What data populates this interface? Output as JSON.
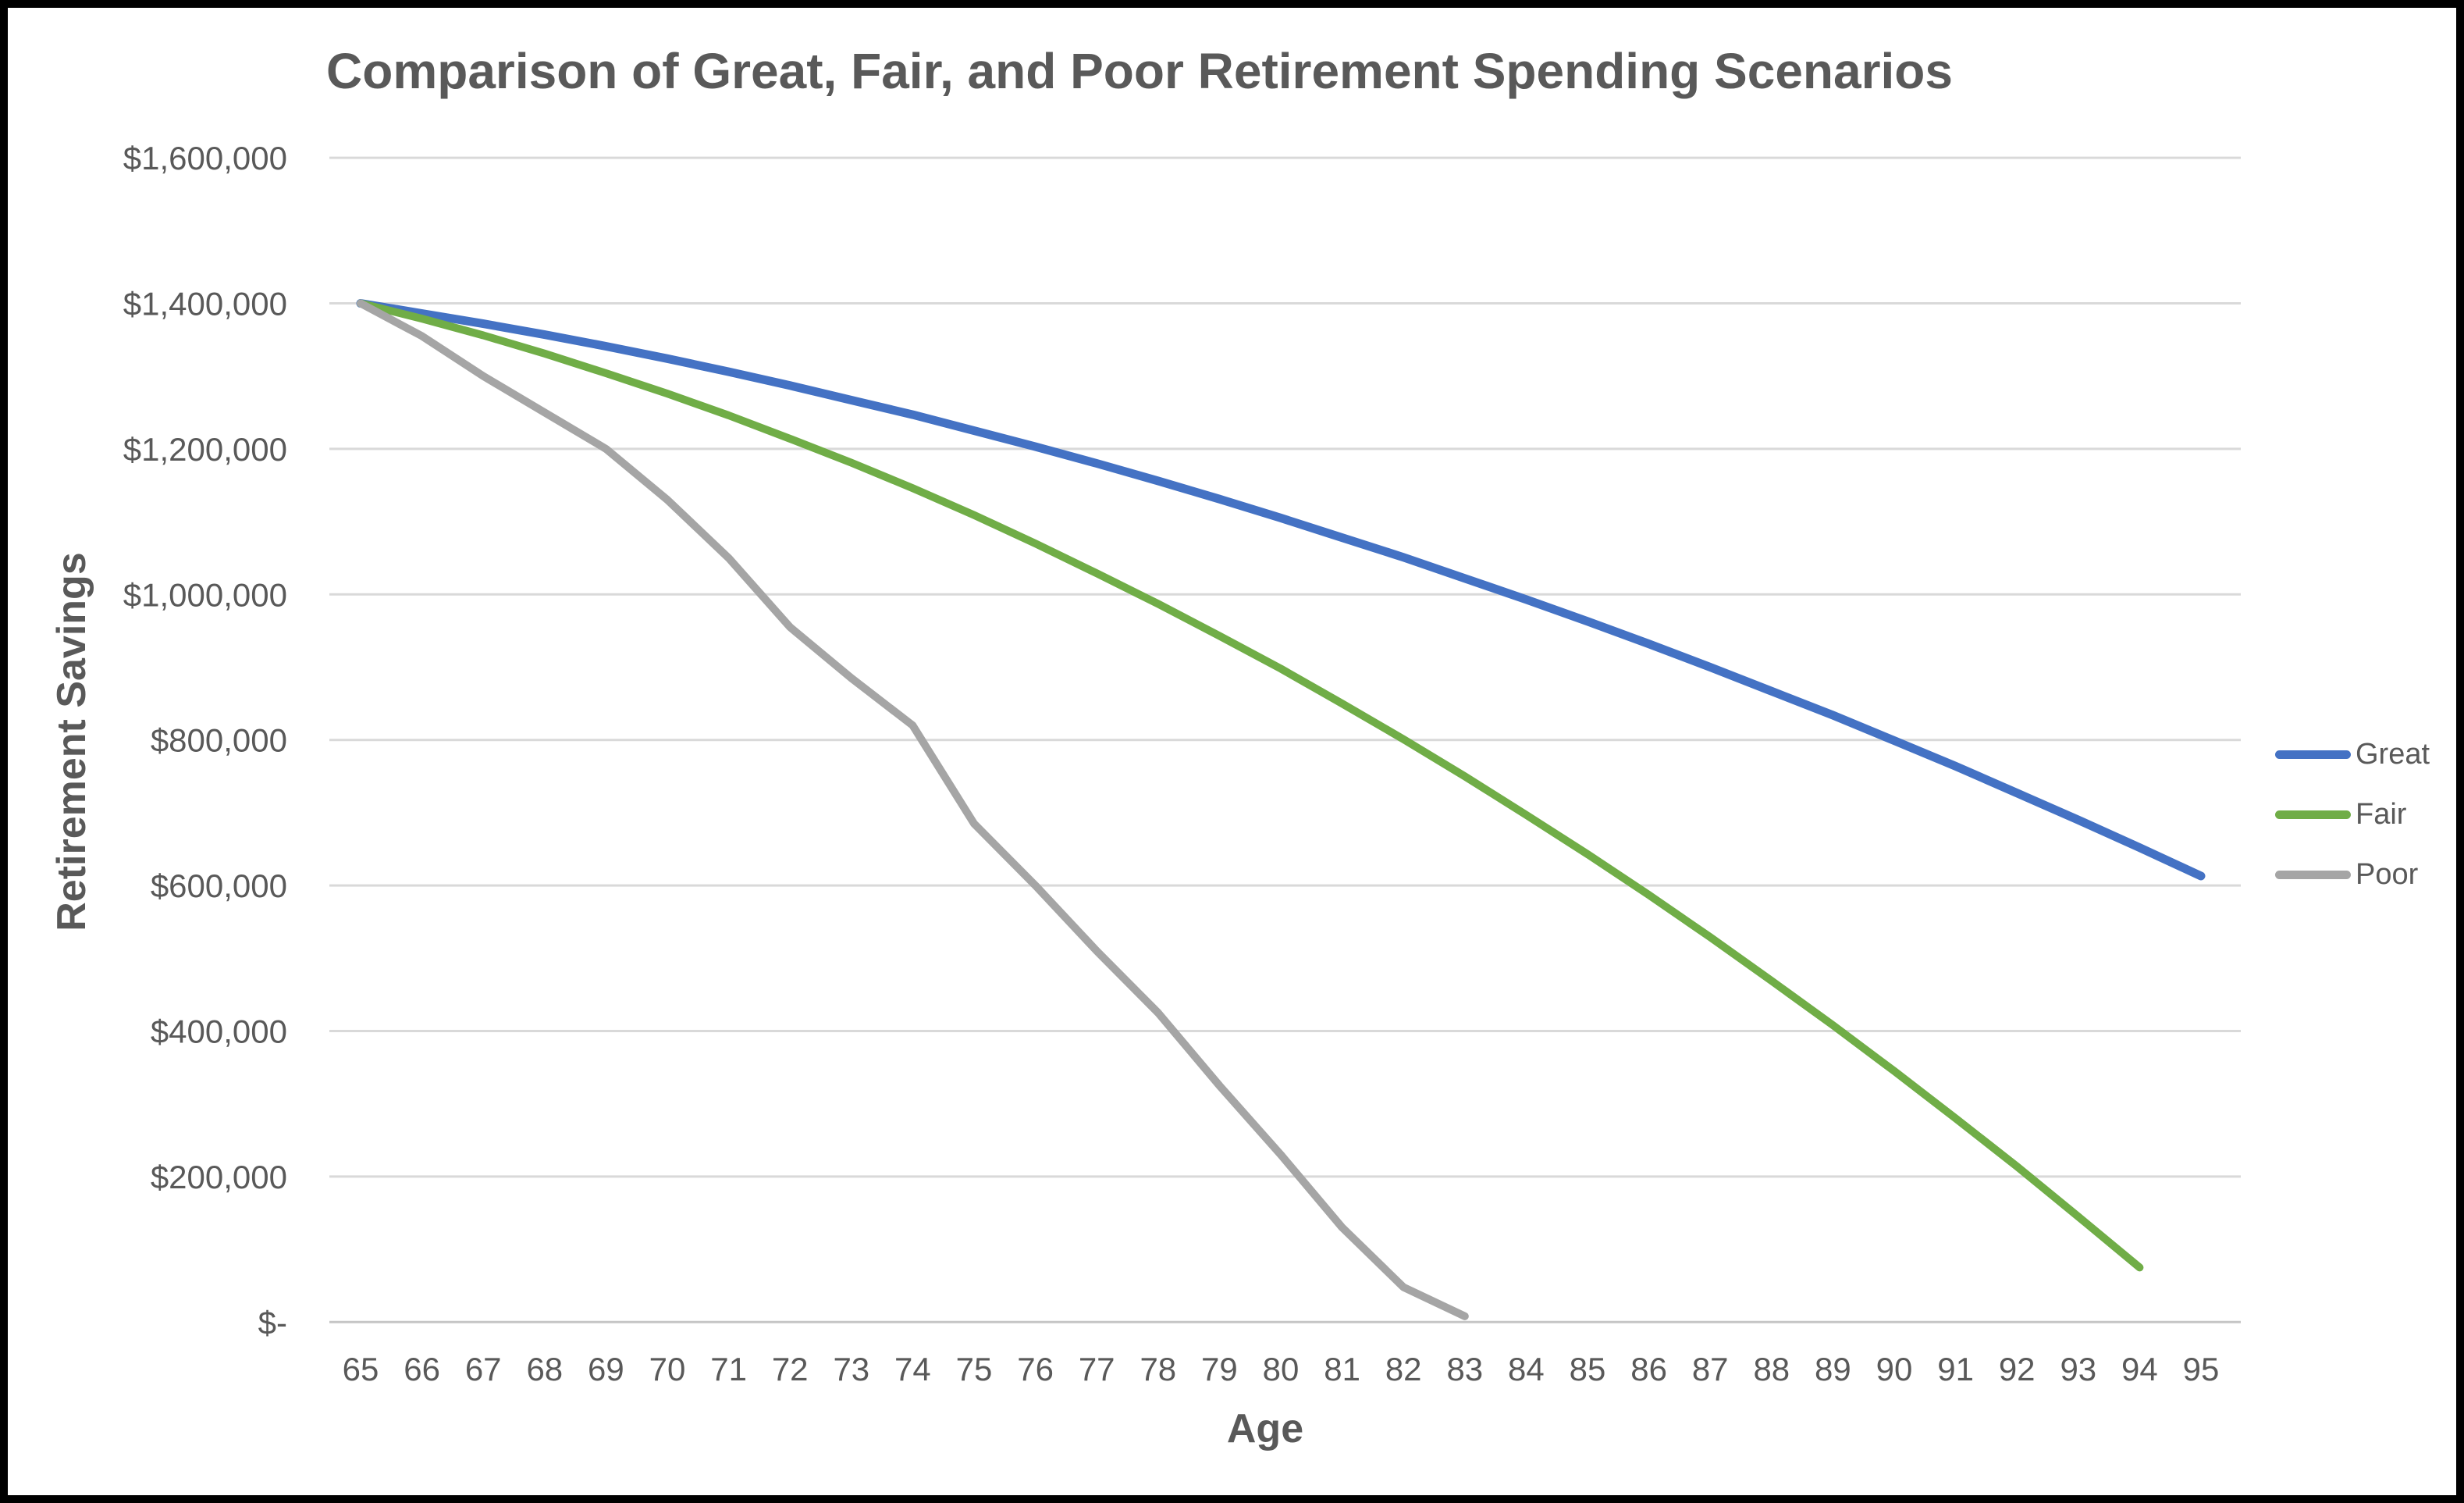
{
  "chart_data": {
    "type": "line",
    "title": "Comparison of Great, Fair, and Poor Retirement Spending Scenarios",
    "xlabel": "Age",
    "ylabel": "Retirement Savings",
    "x": [
      65,
      66,
      67,
      68,
      69,
      70,
      71,
      72,
      73,
      74,
      75,
      76,
      77,
      78,
      79,
      80,
      81,
      82,
      83,
      84,
      85,
      86,
      87,
      88,
      89,
      90,
      91,
      92,
      93,
      94,
      95
    ],
    "ylim": [
      0,
      1600000
    ],
    "ytick_step": 200000,
    "ytick_labels_bottom_to_top": [
      "$-",
      "$200,000",
      "$400,000",
      "$600,000",
      "$800,000",
      "$1,000,000",
      "$1,200,000",
      "$1,400,000",
      "$1,600,000"
    ],
    "grid": true,
    "legend_position": "right",
    "series": [
      {
        "name": "Great",
        "color": "#4472C4",
        "values": [
          1400000,
          1386000,
          1372000,
          1357000,
          1341000,
          1324000,
          1306000,
          1287000,
          1267000,
          1247000,
          1225000,
          1203000,
          1180000,
          1156000,
          1131000,
          1105000,
          1078000,
          1051000,
          1022000,
          993000,
          963000,
          932000,
          900000,
          867000,
          834000,
          799000,
          764000,
          727000,
          690000,
          652000,
          613000
        ]
      },
      {
        "name": "Fair",
        "color": "#70AD47",
        "values": [
          1400000,
          1379000,
          1356000,
          1331000,
          1304000,
          1276000,
          1246000,
          1214000,
          1181000,
          1146000,
          1109000,
          1070000,
          1029000,
          987000,
          943000,
          898000,
          850000,
          801000,
          750000,
          697000,
          643000,
          587000,
          529000,
          469000,
          408000,
          345000,
          280000,
          214000,
          145000,
          75000,
          null
        ]
      },
      {
        "name": "Poor",
        "color": "#A5A5A5",
        "values": [
          1400000,
          1355000,
          1300000,
          1250000,
          1200000,
          1130000,
          1050000,
          955000,
          885000,
          820000,
          685000,
          600000,
          510000,
          425000,
          325000,
          230000,
          130000,
          48000,
          8000,
          null,
          null,
          null,
          null,
          null,
          null,
          null,
          null,
          null,
          null,
          null,
          null
        ]
      }
    ],
    "gridline_color": "#D9D9D9",
    "axis_line_color": "#C6C6C6",
    "text_color": "#595959"
  }
}
